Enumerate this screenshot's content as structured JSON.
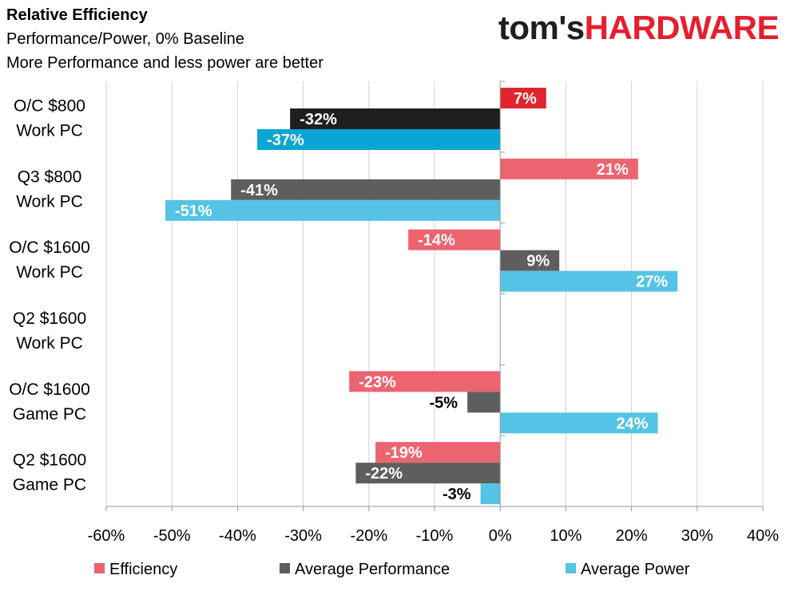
{
  "header": {
    "title": "Relative Efficiency",
    "subtitle1": "Performance/Power, 0% Baseline",
    "subtitle2": "More Performance and less power are better"
  },
  "logo": {
    "part1": "tom's",
    "part2": "HARDWARE"
  },
  "chart_data": {
    "type": "bar",
    "orientation": "horizontal",
    "categories": [
      [
        "O/C $800",
        "Work PC"
      ],
      [
        "Q3 $800",
        "Work PC"
      ],
      [
        "O/C $1600",
        "Work PC"
      ],
      [
        "Q2 $1600",
        "Work PC"
      ],
      [
        "O/C $1600",
        "Game PC"
      ],
      [
        "Q2 $1600",
        "Game PC"
      ]
    ],
    "series": [
      {
        "name": "Efficiency",
        "values": [
          7,
          21,
          -14,
          null,
          -23,
          -19
        ],
        "labels": [
          "7%",
          "21%",
          "-14%",
          "",
          "-23%",
          "-19%"
        ]
      },
      {
        "name": "Average Performance",
        "values": [
          -32,
          -41,
          9,
          null,
          -5,
          -22
        ],
        "labels": [
          "-32%",
          "-41%",
          "9%",
          "",
          "-5%",
          "-22%"
        ]
      },
      {
        "name": "Average Power",
        "values": [
          -37,
          -51,
          27,
          null,
          24,
          -3
        ],
        "labels": [
          "-37%",
          "-51%",
          "27%",
          "",
          "24%",
          "-3%"
        ]
      }
    ],
    "xlim": [
      -60,
      40
    ],
    "xticks": [
      -60,
      -50,
      -40,
      -30,
      -20,
      -10,
      0,
      10,
      20,
      30,
      40
    ],
    "xtick_labels": [
      "-60%",
      "-50%",
      "-40%",
      "-30%",
      "-20%",
      "-10%",
      "0%",
      "10%",
      "20%",
      "30%",
      "40%"
    ],
    "grid": true,
    "legend": "bottom",
    "colors": {
      "top_group": [
        "#e0252f",
        "#1f1f1f",
        "#0aa5d4"
      ],
      "lower_groups": [
        "#ec6470",
        "#5e5e5e",
        "#55c3e5"
      ],
      "grid": "#d0d0d0",
      "axis": "#999999",
      "legend": [
        "#ec6470",
        "#5e5e5e",
        "#55c3e5"
      ]
    }
  }
}
